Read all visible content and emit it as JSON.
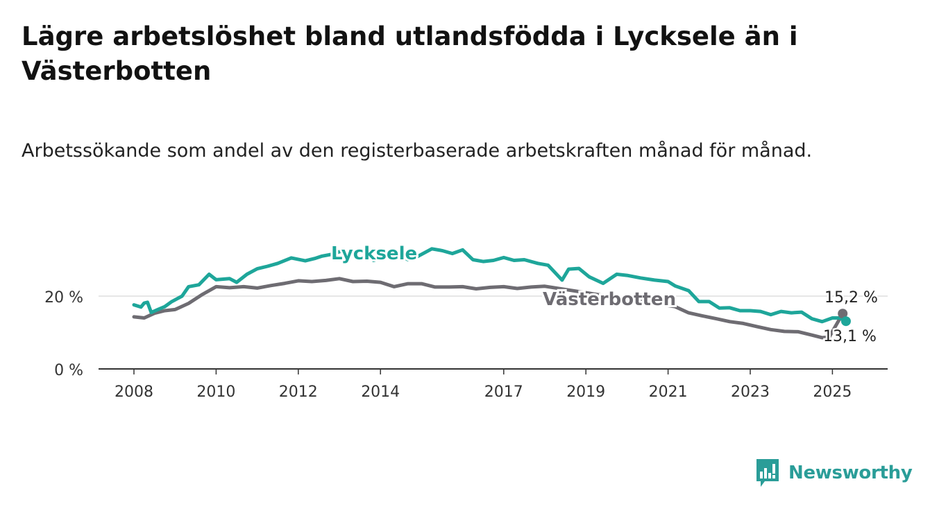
{
  "title": "Lägre arbetslöshet bland utlandsfödda i Lycksele än i Västerbotten",
  "subtitle": "Arbetssökande som andel av den registerbaserade arbetskraften månad för månad.",
  "brand": {
    "name": "Newsworthy",
    "color": "#2a9d98"
  },
  "chart_data": {
    "type": "line",
    "title": "Lägre arbetslöshet bland utlandsfödda i Lycksele än i Västerbotten",
    "subtitle": "Arbetssökande som andel av den registerbaserade arbetskraften månad för månad.",
    "xlabel": "",
    "ylabel": "",
    "x_range": [
      2007.2,
      2026.2
    ],
    "ylim": [
      0,
      40
    ],
    "y_ticks": [
      0,
      20
    ],
    "y_tick_labels": [
      "0 %",
      "20 %"
    ],
    "x_ticks": [
      2008,
      2010,
      2012,
      2014,
      2017,
      2019,
      2021,
      2023,
      2025
    ],
    "x_tick_labels": [
      "2008",
      "2010",
      "2012",
      "2014",
      "2017",
      "2019",
      "2021",
      "2023",
      "2025"
    ],
    "grid": true,
    "series": [
      {
        "name": "Lycksele",
        "color": "#1ea69a",
        "end_value_label": "13,1 %",
        "points": [
          [
            2008.0,
            17.6
          ],
          [
            2008.17,
            17.0
          ],
          [
            2008.25,
            18.1
          ],
          [
            2008.33,
            18.3
          ],
          [
            2008.42,
            15.5
          ],
          [
            2008.58,
            16.3
          ],
          [
            2008.75,
            17.1
          ],
          [
            2008.92,
            18.5
          ],
          [
            2009.17,
            20.0
          ],
          [
            2009.33,
            22.6
          ],
          [
            2009.58,
            23.1
          ],
          [
            2009.83,
            26.0
          ],
          [
            2010.0,
            24.5
          ],
          [
            2010.33,
            24.8
          ],
          [
            2010.5,
            23.8
          ],
          [
            2010.75,
            26.0
          ],
          [
            2011.0,
            27.5
          ],
          [
            2011.25,
            28.2
          ],
          [
            2011.5,
            29.0
          ],
          [
            2011.83,
            30.5
          ],
          [
            2012.17,
            29.7
          ],
          [
            2012.42,
            30.4
          ],
          [
            2012.58,
            31.0
          ],
          [
            2012.83,
            31.5
          ],
          [
            2013.08,
            32.5
          ],
          [
            2013.33,
            31.6
          ],
          [
            2013.5,
            32.5
          ],
          [
            2013.83,
            29.8
          ],
          [
            2014.17,
            31.0
          ],
          [
            2014.42,
            31.5
          ],
          [
            2014.67,
            30.0
          ],
          [
            2014.92,
            31.0
          ],
          [
            2015.25,
            33.0
          ],
          [
            2015.5,
            32.5
          ],
          [
            2015.75,
            31.7
          ],
          [
            2016.0,
            32.7
          ],
          [
            2016.25,
            30.0
          ],
          [
            2016.5,
            29.5
          ],
          [
            2016.75,
            29.8
          ],
          [
            2017.0,
            30.6
          ],
          [
            2017.25,
            29.8
          ],
          [
            2017.5,
            30.0
          ],
          [
            2017.83,
            29.0
          ],
          [
            2018.08,
            28.5
          ],
          [
            2018.42,
            24.4
          ],
          [
            2018.58,
            27.4
          ],
          [
            2018.83,
            27.6
          ],
          [
            2019.08,
            25.3
          ],
          [
            2019.42,
            23.5
          ],
          [
            2019.75,
            26.0
          ],
          [
            2020.0,
            25.7
          ],
          [
            2020.33,
            25.0
          ],
          [
            2020.67,
            24.4
          ],
          [
            2021.0,
            24.0
          ],
          [
            2021.17,
            22.8
          ],
          [
            2021.5,
            21.5
          ],
          [
            2021.75,
            18.5
          ],
          [
            2022.0,
            18.5
          ],
          [
            2022.25,
            16.7
          ],
          [
            2022.5,
            16.8
          ],
          [
            2022.75,
            16.0
          ],
          [
            2023.0,
            16.0
          ],
          [
            2023.25,
            15.8
          ],
          [
            2023.5,
            14.9
          ],
          [
            2023.75,
            15.8
          ],
          [
            2024.0,
            15.4
          ],
          [
            2024.25,
            15.6
          ],
          [
            2024.5,
            13.8
          ],
          [
            2024.75,
            13.0
          ],
          [
            2025.0,
            14.0
          ],
          [
            2025.17,
            14.0
          ],
          [
            2025.33,
            13.1
          ]
        ]
      },
      {
        "name": "Västerbotten",
        "color": "#6e6c72",
        "end_value_label": "15,2 %",
        "points": [
          [
            2008.0,
            14.3
          ],
          [
            2008.25,
            14.0
          ],
          [
            2008.5,
            15.3
          ],
          [
            2008.75,
            16.0
          ],
          [
            2009.0,
            16.3
          ],
          [
            2009.33,
            18.0
          ],
          [
            2009.67,
            20.5
          ],
          [
            2010.0,
            22.6
          ],
          [
            2010.33,
            22.3
          ],
          [
            2010.67,
            22.6
          ],
          [
            2011.0,
            22.2
          ],
          [
            2011.33,
            22.9
          ],
          [
            2011.67,
            23.5
          ],
          [
            2012.0,
            24.2
          ],
          [
            2012.33,
            24.0
          ],
          [
            2012.67,
            24.3
          ],
          [
            2013.0,
            24.8
          ],
          [
            2013.33,
            24.0
          ],
          [
            2013.67,
            24.1
          ],
          [
            2014.0,
            23.8
          ],
          [
            2014.33,
            22.6
          ],
          [
            2014.67,
            23.4
          ],
          [
            2015.0,
            23.4
          ],
          [
            2015.33,
            22.5
          ],
          [
            2015.67,
            22.5
          ],
          [
            2016.0,
            22.6
          ],
          [
            2016.33,
            22.0
          ],
          [
            2016.67,
            22.4
          ],
          [
            2017.0,
            22.6
          ],
          [
            2017.33,
            22.1
          ],
          [
            2017.67,
            22.5
          ],
          [
            2018.0,
            22.7
          ],
          [
            2021.17,
            17.1
          ],
          [
            2021.5,
            15.4
          ],
          [
            2021.83,
            14.6
          ],
          [
            2022.17,
            13.8
          ],
          [
            2022.5,
            13.0
          ],
          [
            2022.83,
            12.5
          ],
          [
            2023.17,
            11.6
          ],
          [
            2023.5,
            10.8
          ],
          [
            2023.83,
            10.3
          ],
          [
            2024.17,
            10.2
          ],
          [
            2024.5,
            9.3
          ],
          [
            2024.75,
            8.6
          ],
          [
            2024.92,
            8.7
          ],
          [
            2025.25,
            15.2
          ]
        ]
      }
    ]
  }
}
